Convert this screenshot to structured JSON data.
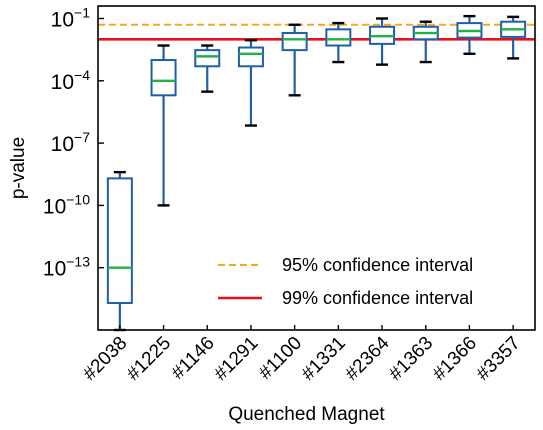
{
  "chart_data": {
    "type": "boxplot",
    "title": "",
    "xlabel": "Quenched Magnet",
    "ylabel": "p-value",
    "yscale": "log",
    "ylim": [
      1e-16,
      0.4
    ],
    "yticks": [
      {
        "value": 0.1,
        "base": "10",
        "exp": "−1"
      },
      {
        "value": 0.0001,
        "base": "10",
        "exp": "−4"
      },
      {
        "value": 1e-07,
        "base": "10",
        "exp": "−7"
      },
      {
        "value": 1e-10,
        "base": "10",
        "exp": "−10"
      },
      {
        "value": 1e-13,
        "base": "10",
        "exp": "−13"
      }
    ],
    "categories": [
      "#2038",
      "#1225",
      "#1146",
      "#1291",
      "#1100",
      "#1331",
      "#2364",
      "#1363",
      "#1366",
      "#3357"
    ],
    "boxes": [
      {
        "whislo": 1e-16,
        "q1": 2e-15,
        "med": 1e-13,
        "q3": 2e-09,
        "whishi": 4e-09
      },
      {
        "whislo": 1e-10,
        "q1": 2e-05,
        "med": 0.0001,
        "q3": 0.001,
        "whishi": 0.005
      },
      {
        "whislo": 3e-05,
        "q1": 0.0005,
        "med": 0.0015,
        "q3": 0.003,
        "whishi": 0.005
      },
      {
        "whislo": 7e-07,
        "q1": 0.0005,
        "med": 0.002,
        "q3": 0.004,
        "whishi": 0.009
      },
      {
        "whislo": 2e-05,
        "q1": 0.003,
        "med": 0.01,
        "q3": 0.02,
        "whishi": 0.05
      },
      {
        "whislo": 0.0008,
        "q1": 0.005,
        "med": 0.01,
        "q3": 0.03,
        "whishi": 0.06
      },
      {
        "whislo": 0.0006,
        "q1": 0.006,
        "med": 0.014,
        "q3": 0.04,
        "whishi": 0.1
      },
      {
        "whislo": 0.0008,
        "q1": 0.01,
        "med": 0.02,
        "q3": 0.04,
        "whishi": 0.07
      },
      {
        "whislo": 0.002,
        "q1": 0.012,
        "med": 0.025,
        "q3": 0.06,
        "whishi": 0.13
      },
      {
        "whislo": 0.0012,
        "q1": 0.013,
        "med": 0.03,
        "q3": 0.07,
        "whishi": 0.12
      }
    ],
    "reference_lines": [
      {
        "label": "95% confidence interval",
        "value": 0.05,
        "style": "dashed",
        "color": "#f5a623"
      },
      {
        "label": "99% confidence interval",
        "value": 0.01,
        "style": "solid",
        "color": "#e8101a"
      }
    ],
    "legend_position": "lower-right",
    "grid": false,
    "colors": {
      "box": "#1f5fa8",
      "median": "#22b04a",
      "cap": "#000000"
    }
  }
}
